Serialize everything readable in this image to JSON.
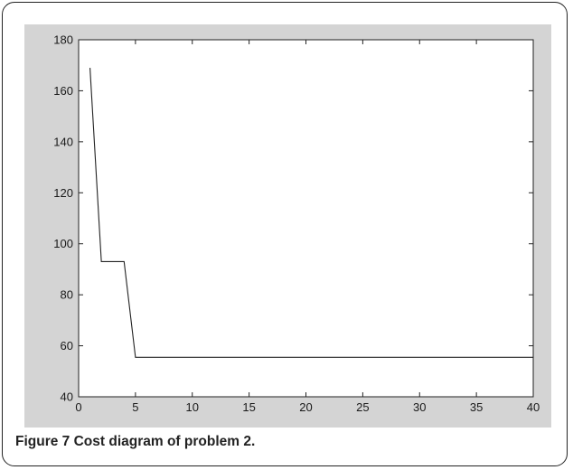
{
  "chart_data": {
    "type": "line",
    "title": "",
    "xlabel": "",
    "ylabel": "",
    "xlim": [
      0,
      40
    ],
    "ylim": [
      40,
      180
    ],
    "xticks": [
      0,
      5,
      10,
      15,
      20,
      25,
      30,
      35,
      40
    ],
    "yticks": [
      40,
      60,
      80,
      100,
      120,
      140,
      160,
      180
    ],
    "grid": false,
    "legend": "none",
    "colors": {
      "line": "#222222",
      "axes_bg": "#ffffff",
      "figure_bg": "#d4d4d4"
    },
    "series": [
      {
        "x": [
          1,
          2,
          3,
          4,
          5,
          6,
          7,
          8,
          9,
          10,
          11,
          12,
          13,
          14,
          15,
          16,
          17,
          18,
          19,
          20,
          21,
          22,
          23,
          24,
          25,
          26,
          27,
          28,
          29,
          30,
          31,
          32,
          33,
          34,
          35,
          36,
          37,
          38,
          39,
          40
        ],
        "values": [
          169,
          93,
          93,
          93,
          55.5,
          55.5,
          55.5,
          55.5,
          55.5,
          55.5,
          55.5,
          55.5,
          55.5,
          55.5,
          55.5,
          55.5,
          55.5,
          55.5,
          55.5,
          55.5,
          55.5,
          55.5,
          55.5,
          55.5,
          55.5,
          55.5,
          55.5,
          55.5,
          55.5,
          55.5,
          55.5,
          55.5,
          55.5,
          55.5,
          55.5,
          55.5,
          55.5,
          55.5,
          55.5,
          55.5
        ]
      }
    ]
  },
  "caption": {
    "label": "Figure 7",
    "text": "Cost diagram of problem 2."
  }
}
